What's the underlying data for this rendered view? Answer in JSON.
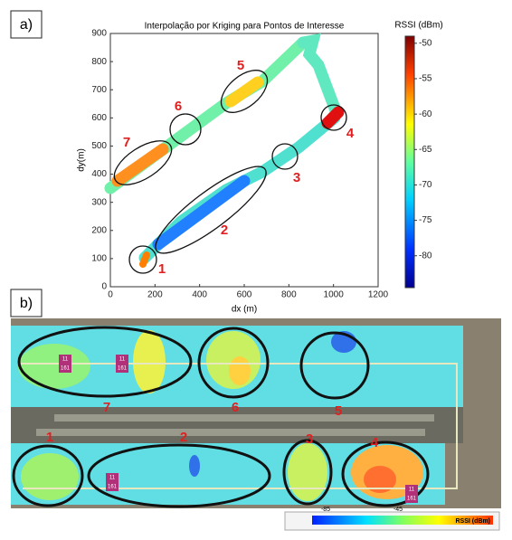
{
  "chart_data": {
    "type": "heatmap",
    "panel_label": "a)",
    "title": "Interpolação por Kriging para Pontos de Interesse",
    "xlabel": "dx (m)",
    "ylabel": "dy(m)",
    "xlim": [
      0,
      1200
    ],
    "xticks": [
      0,
      200,
      400,
      600,
      800,
      1000,
      1200
    ],
    "ylim": [
      0,
      900
    ],
    "yticks": [
      0,
      100,
      200,
      300,
      400,
      500,
      600,
      700,
      800,
      900
    ],
    "colorbar_label": "RSSI (dBm)",
    "clim": [
      -84.5,
      -49
    ],
    "cticks": [
      -50,
      -55,
      -60,
      -65,
      -70,
      -75,
      -80
    ],
    "annotations": [
      "1",
      "2",
      "3",
      "4",
      "5",
      "6",
      "7"
    ]
  },
  "panel_b": {
    "panel_label": "b)",
    "zone_labels": [
      "1",
      "2",
      "3",
      "4",
      "5",
      "6",
      "7"
    ],
    "pins": [
      {
        "top": "11",
        "bottom": "161"
      },
      {
        "top": "11",
        "bottom": "161"
      },
      {
        "top": "11",
        "bottom": "161"
      },
      {
        "top": "11",
        "bottom": "161"
      }
    ],
    "legend": {
      "label": "RSSI (dBm)",
      "min_label": "-85",
      "max_label": "-45"
    }
  }
}
